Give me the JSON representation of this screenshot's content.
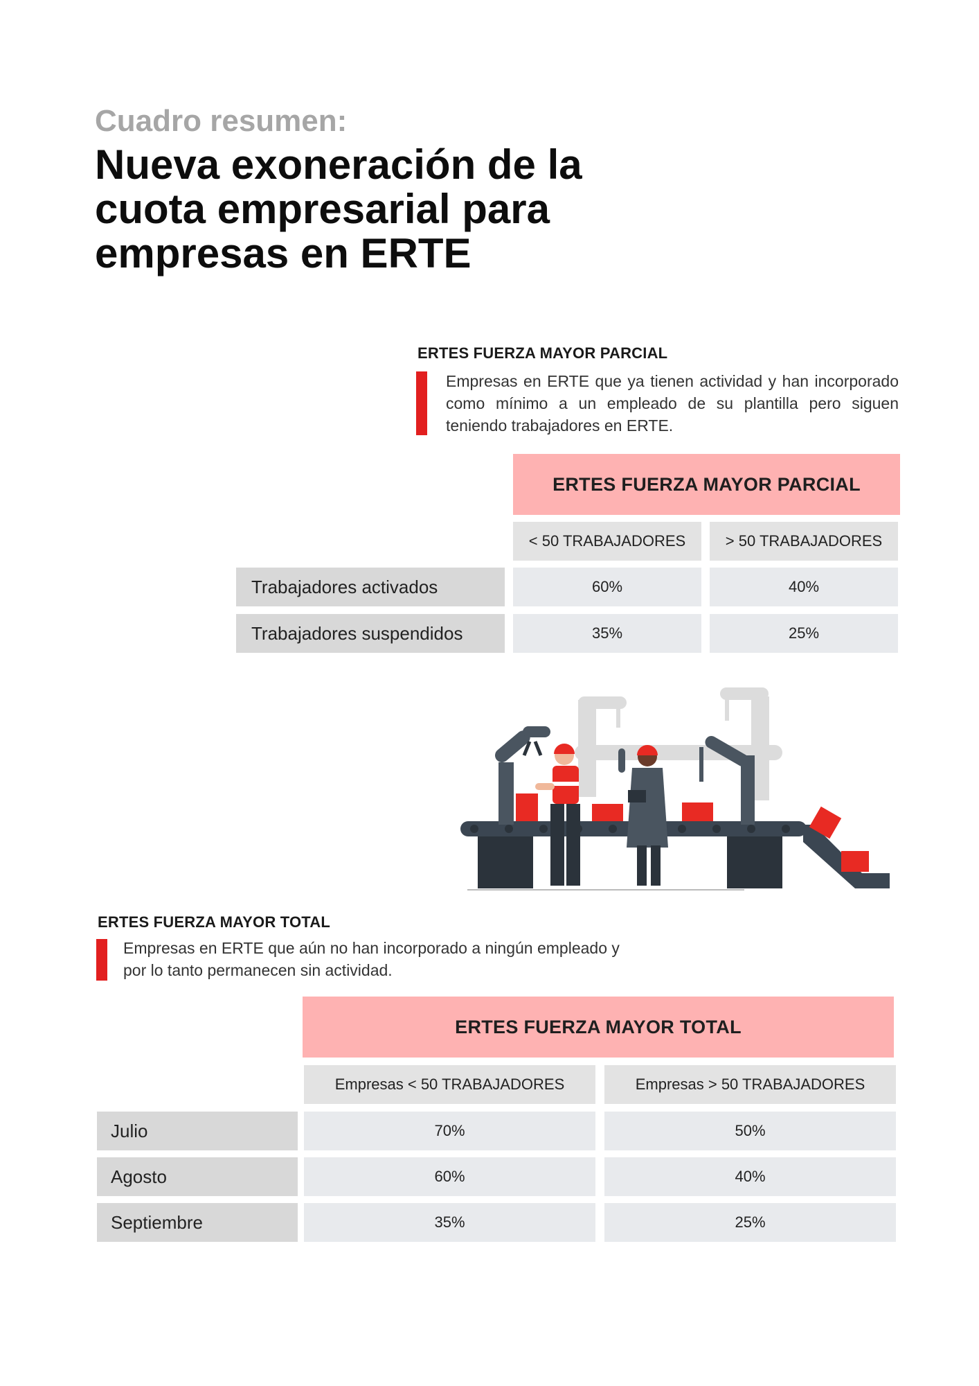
{
  "header": {
    "kicker": "Cuadro resumen:",
    "title_lines": [
      "Nueva exoneración de la",
      "cuota empresarial para",
      "empresas en ERTE"
    ]
  },
  "parcial": {
    "section_title": "ERTES FUERZA MAYOR PARCIAL",
    "description": "Empresas en ERTE que ya tienen actividad y han incorporado como mínimo a un empleado de su plantilla pero siguen teniendo trabajadores en ERTE.",
    "table": {
      "header": "ERTES FUERZA MAYOR PARCIAL",
      "columns": [
        "< 50 TRABAJADORES",
        "> 50 TRABAJADORES"
      ],
      "rows": [
        {
          "label": "Trabajadores activados",
          "values": [
            "60%",
            "40%"
          ]
        },
        {
          "label": "Trabajadores suspendidos",
          "values": [
            "35%",
            "25%"
          ]
        }
      ]
    }
  },
  "total": {
    "section_title": "ERTES FUERZA MAYOR TOTAL",
    "description": "Empresas en ERTE que aún no han incorporado a ningún empleado y por lo tanto permanecen sin actividad.",
    "table": {
      "header": "ERTES FUERZA MAYOR TOTAL",
      "columns": [
        "Empresas < 50 TRABAJADORES",
        "Empresas > 50 TRABAJADORES"
      ],
      "rows": [
        {
          "label": "Julio",
          "values": [
            "70%",
            "50%"
          ]
        },
        {
          "label": "Agosto",
          "values": [
            "60%",
            "40%"
          ]
        },
        {
          "label": "Septiembre",
          "values": [
            "35%",
            "25%"
          ]
        }
      ]
    }
  },
  "colors": {
    "accent_red": "#e21f1f",
    "table_header_pink": "#feb2b2",
    "label_grey": "#d8d8d8",
    "value_grey": "#e8eaed",
    "kicker_grey": "#a6a6a6"
  },
  "illustration": {
    "icon": "factory-assembly-line-icon"
  }
}
